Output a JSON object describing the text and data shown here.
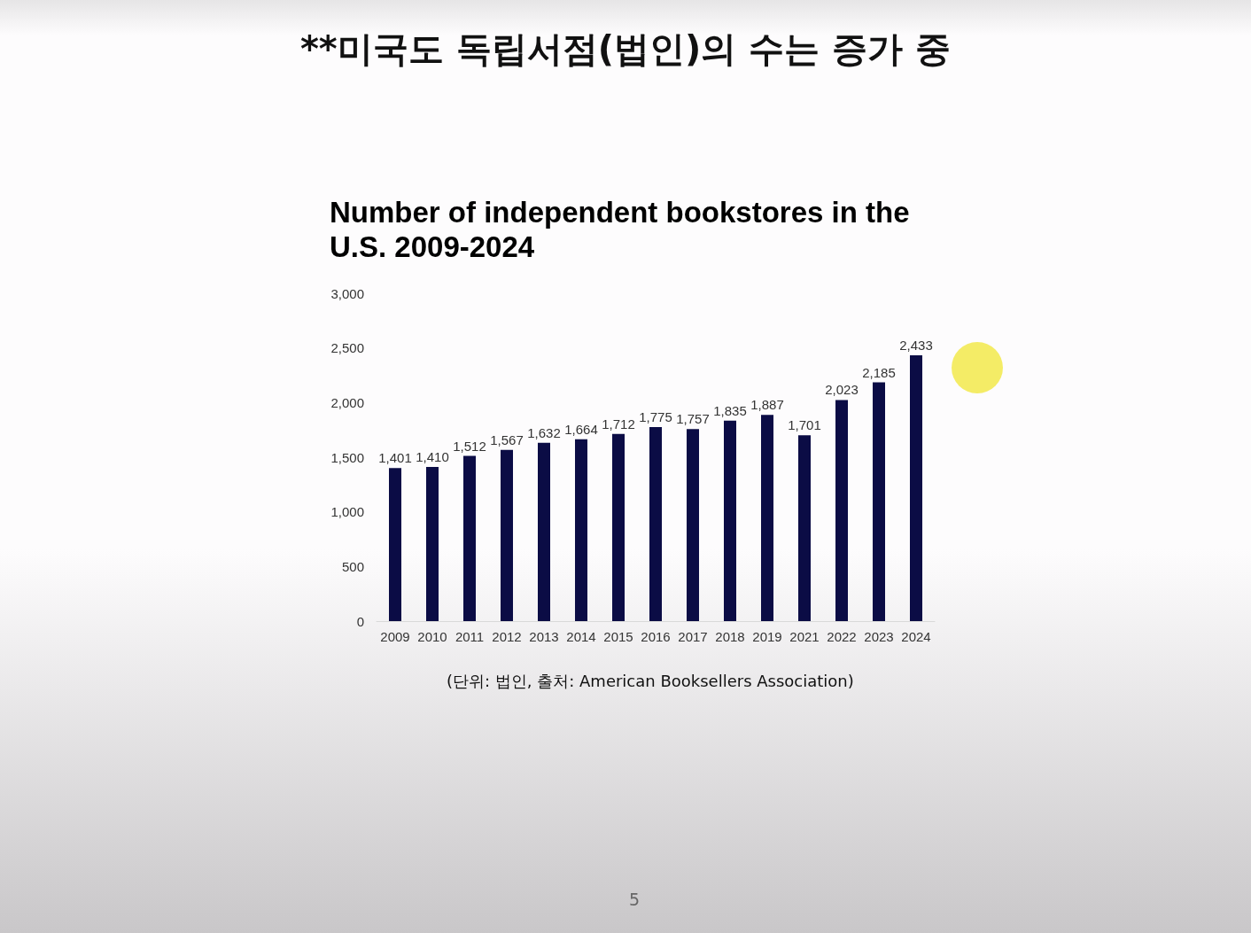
{
  "chart_data": {
    "type": "bar",
    "title": "**미국도 독립서점(법인)의 수는 증가 중",
    "subtitle": "Number of independent bookstores in the U.S. 2009-2024",
    "categories": [
      "2009",
      "2010",
      "2011",
      "2012",
      "2013",
      "2014",
      "2015",
      "2016",
      "2017",
      "2018",
      "2019",
      "2021",
      "2022",
      "2023",
      "2024"
    ],
    "values": [
      1401,
      1410,
      1512,
      1567,
      1632,
      1664,
      1712,
      1775,
      1757,
      1835,
      1887,
      1701,
      2023,
      2185,
      2433
    ],
    "value_labels": [
      "1,401",
      "1,410",
      "1,512",
      "1,567",
      "1,632",
      "1,664",
      "1,712",
      "1,775",
      "1,757",
      "1,835",
      "1,887",
      "1,701",
      "2,023",
      "2,185",
      "2,433"
    ],
    "color": "#0b0c45",
    "ylim": [
      0,
      3000
    ],
    "yticks": [
      0,
      500,
      {
        "value": 1000,
        "label": "1,000"
      },
      {
        "value": 1500,
        "label": "1,500"
      },
      {
        "value": 2000,
        "label": "2,000"
      },
      {
        "value": 2500,
        "label": "2,500"
      },
      {
        "value": 3000,
        "label": "3,000"
      }
    ],
    "grid": false,
    "annotations": [
      "(단위: 법인, 출처: American Booksellers Association)",
      "5"
    ]
  }
}
